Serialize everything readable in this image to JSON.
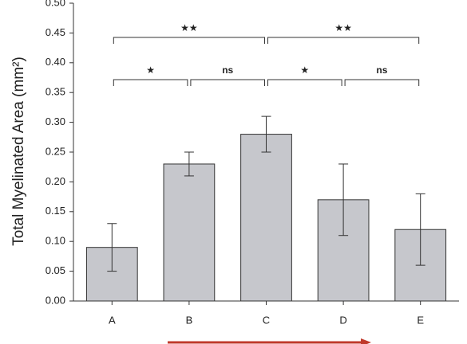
{
  "chart_data": {
    "type": "bar",
    "y_label": "Total Myelinated Area (mm²)",
    "categories": [
      "A",
      "B",
      "C",
      "D",
      "E"
    ],
    "values": [
      0.09,
      0.23,
      0.28,
      0.17,
      0.12
    ],
    "errors": [
      0.04,
      0.02,
      0.03,
      0.06,
      0.06
    ],
    "color": "#c6c7cc",
    "ylim": [
      0,
      0.5
    ],
    "yticks": [
      {
        "value": 0,
        "label": "0.00"
      },
      {
        "value": 0.05,
        "label": "0.05"
      },
      {
        "value": 0.1,
        "label": "0.10"
      },
      {
        "value": 0.15,
        "label": "0.15"
      },
      {
        "value": 0.2,
        "label": "0.20"
      },
      {
        "value": 0.25,
        "label": "0.25"
      },
      {
        "value": 0.3,
        "label": "0.30"
      },
      {
        "value": 0.35,
        "label": "0.35"
      },
      {
        "value": 0.4,
        "label": "0.40"
      },
      {
        "value": 0.45,
        "label": "0.45"
      },
      {
        "value": 0.5,
        "label": "0.50"
      }
    ],
    "grid": false,
    "annotations": [
      {
        "text": "★★",
        "from": "A",
        "to": "C"
      },
      {
        "text": "★★",
        "from": "C",
        "to": "E"
      },
      {
        "text": "★",
        "from": "A",
        "to": "B"
      },
      {
        "text": "ns",
        "from": "B",
        "to": "C"
      },
      {
        "text": "★",
        "from": "C",
        "to": "D"
      },
      {
        "text": "ns",
        "from": "D",
        "to": "E"
      }
    ]
  }
}
